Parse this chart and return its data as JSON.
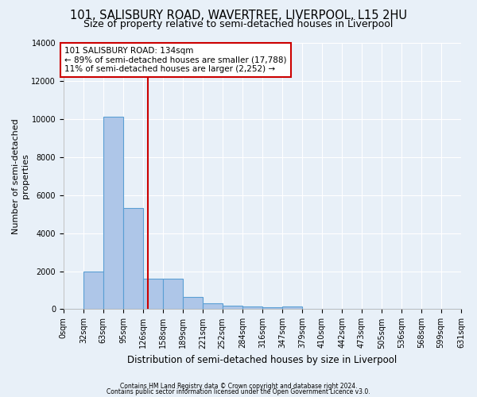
{
  "title": "101, SALISBURY ROAD, WAVERTREE, LIVERPOOL, L15 2HU",
  "subtitle": "Size of property relative to semi-detached houses in Liverpool",
  "xlabel": "Distribution of semi-detached houses by size in Liverpool",
  "ylabel": "Number of semi-detached\nproperties",
  "bin_edges": [
    0,
    32,
    63,
    95,
    126,
    158,
    189,
    221,
    252,
    284,
    316,
    347,
    379,
    410,
    442,
    473,
    505,
    536,
    568,
    599,
    631
  ],
  "bar_heights": [
    0,
    2000,
    10100,
    5300,
    1600,
    1600,
    650,
    300,
    180,
    130,
    100,
    130,
    0,
    0,
    0,
    0,
    0,
    0,
    0,
    0
  ],
  "bar_color": "#aec6e8",
  "bar_edge_color": "#5a9fd4",
  "property_size": 134,
  "vline_color": "#cc0000",
  "annotation_line1": "101 SALISBURY ROAD: 134sqm",
  "annotation_line2": "← 89% of semi-detached houses are smaller (17,788)",
  "annotation_line3": "11% of semi-detached houses are larger (2,252) →",
  "annotation_box_color": "#cc0000",
  "annotation_bg_color": "#ffffff",
  "ylim": [
    0,
    14000
  ],
  "xlim": [
    0,
    631
  ],
  "yticks": [
    0,
    2000,
    4000,
    6000,
    8000,
    10000,
    12000,
    14000
  ],
  "footer_line1": "Contains HM Land Registry data © Crown copyright and database right 2024.",
  "footer_line2": "Contains public sector information licensed under the Open Government Licence v3.0.",
  "title_fontsize": 10.5,
  "subtitle_fontsize": 9,
  "bg_color": "#e8f0f8",
  "plot_bg_color": "#e8f0f8",
  "annotation_fontsize": 7.5,
  "ylabel_fontsize": 8,
  "xlabel_fontsize": 8.5,
  "tick_fontsize": 7,
  "footer_fontsize": 5.5
}
